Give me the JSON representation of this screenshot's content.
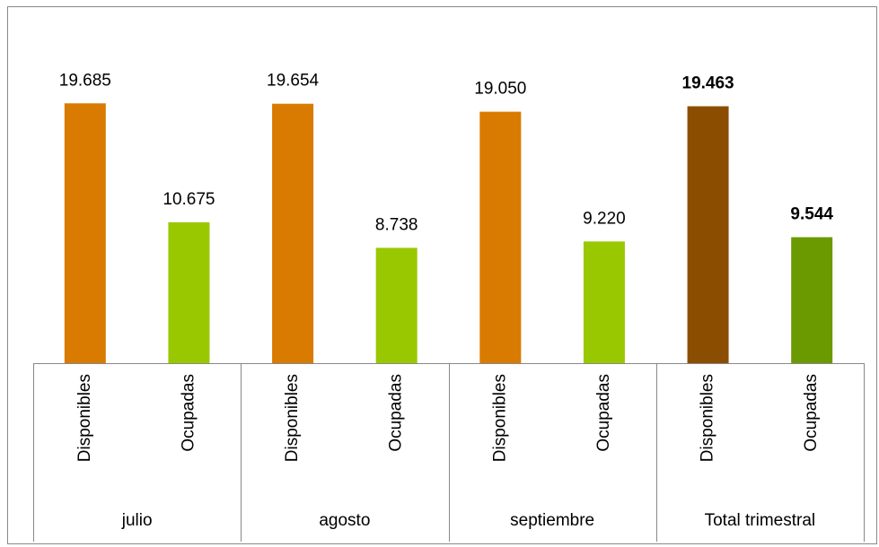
{
  "chart_data": {
    "type": "bar",
    "groups": [
      "julio",
      "agosto",
      "septiembre",
      "Total trimestral"
    ],
    "categories": [
      "Disponibles",
      "Ocupadas",
      "Disponibles",
      "Ocupadas",
      "Disponibles",
      "Ocupadas",
      "Disponibles",
      "Ocupadas"
    ],
    "values": [
      19685,
      10675,
      19654,
      8738,
      19050,
      9220,
      19463,
      9544
    ],
    "value_labels": [
      "19.685",
      "10.675",
      "19.654",
      "8.738",
      "19.050",
      "9.220",
      "19.463",
      "9.544"
    ],
    "colors": [
      "#d97b00",
      "#99c800",
      "#d97b00",
      "#99c800",
      "#d97b00",
      "#99c800",
      "#8b4e00",
      "#6b9a00"
    ],
    "bold_labels": [
      false,
      false,
      false,
      false,
      false,
      false,
      true,
      true
    ],
    "ylim": [
      0,
      25000
    ]
  }
}
